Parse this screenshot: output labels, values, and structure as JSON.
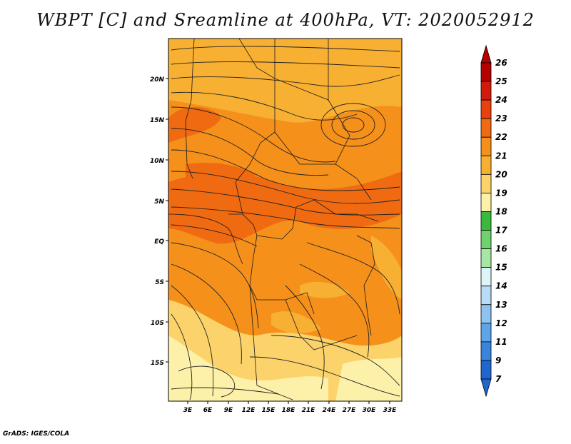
{
  "title": "WBPT [C] and Sreamline at 400hPa, VT: 2020052912",
  "credit": "GrADS: IGES/COLA",
  "map": {
    "lat_labels": [
      "20N",
      "15N",
      "10N",
      "5N",
      "EQ",
      "5S",
      "10S",
      "15S"
    ],
    "lon_labels": [
      "3E",
      "6E",
      "9E",
      "12E",
      "15E",
      "18E",
      "21E",
      "24E",
      "27E",
      "30E",
      "33E"
    ]
  },
  "colorbar": {
    "labels": [
      "26",
      "25",
      "24",
      "23",
      "22",
      "21",
      "20",
      "19",
      "18",
      "17",
      "16",
      "15",
      "14",
      "13",
      "12",
      "11",
      "9",
      "7"
    ],
    "colors": [
      "#b40000",
      "#d41a0a",
      "#e8410d",
      "#f06a12",
      "#f5901a",
      "#f8b032",
      "#fbd36a",
      "#fdf0a8",
      "#3cb83c",
      "#6fd26f",
      "#a8e6a3",
      "#def5f7",
      "#b8dcf5",
      "#8ec3ef",
      "#5ea4e8",
      "#3a85dc",
      "#1f66cf"
    ]
  }
}
